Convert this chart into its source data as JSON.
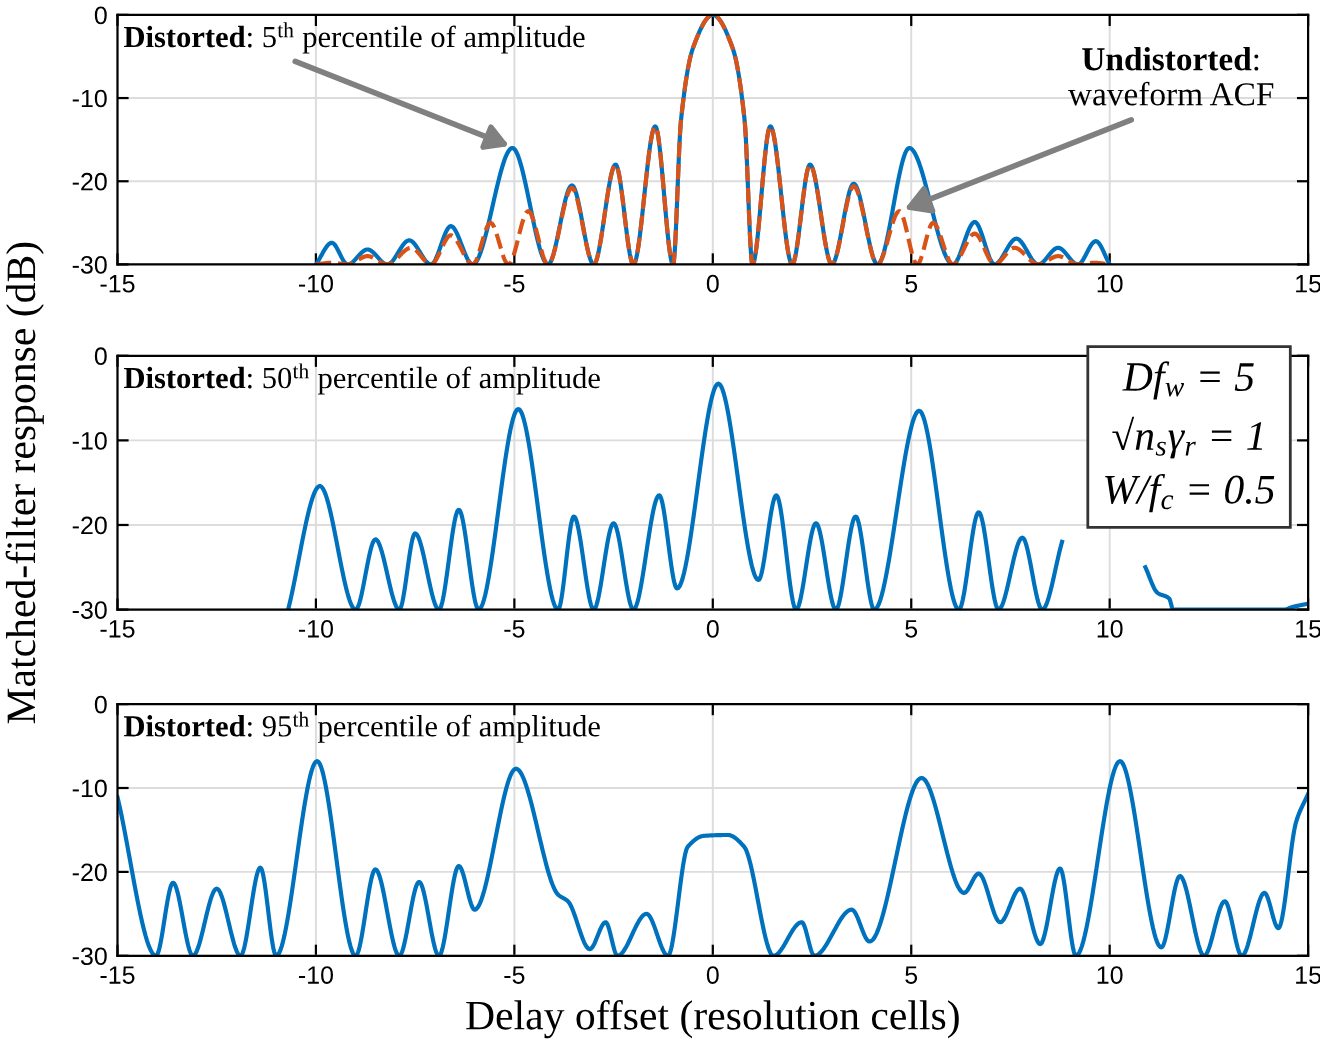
{
  "chart_data": [
    {
      "type": "line",
      "xlim": [
        -15,
        15
      ],
      "xticks": [
        -15,
        -10,
        -5,
        0,
        5,
        10,
        15
      ],
      "ylim": [
        -30,
        0
      ],
      "yticks": [
        -30,
        -20,
        -10,
        0
      ],
      "grid": true,
      "annotations": [
        {
          "text": "Distorted: 5$^{th}$ percentile of amplitude",
          "x": -5,
          "y": -16
        },
        {
          "text": "Undistorted:\nwaveform ACF",
          "x": 4.7,
          "y": -23.6
        }
      ],
      "series": [
        {
          "color": "#0072bd",
          "line_style": "solid",
          "x": [
            -10,
            -9.6,
            -9.2,
            -8.7,
            -8.2,
            -7.65,
            -7.1,
            -6.6,
            -6.05,
            -5.05,
            -4.15,
            -3.55,
            -3.0,
            -2.45,
            -2.0,
            -1.45,
            -1.0,
            -0.8,
            -0.5,
            0,
            0.5,
            0.8,
            1.0,
            1.45,
            2.0,
            2.45,
            3.0,
            3.55,
            4.15,
            4.95,
            6.05,
            6.6,
            7.1,
            7.65,
            8.2,
            8.7,
            9.2,
            9.65,
            10
          ],
          "values": [
            -30,
            -27.4,
            -30,
            -28.2,
            -30,
            -27.1,
            -30,
            -25.4,
            -30,
            -16,
            -30,
            -20.5,
            -30,
            -18,
            -30,
            -13.4,
            -30,
            -12.6,
            -4,
            0,
            -4,
            -12.6,
            -30,
            -13.4,
            -30,
            -18,
            -30,
            -20.3,
            -30,
            -16,
            -30,
            -24.9,
            -30,
            -26.9,
            -30,
            -28,
            -30,
            -27.2,
            -30
          ]
        },
        {
          "color": "#d95319",
          "line_style": "dashed",
          "x": [
            -10,
            -9.6,
            -9.2,
            -8.7,
            -8.2,
            -7.6,
            -7.1,
            -6.6,
            -6.05,
            -5.6,
            -5.15,
            -4.65,
            -4.15,
            -3.55,
            -3.0,
            -2.45,
            -2.0,
            -1.45,
            -1.0,
            -0.8,
            -0.5,
            0,
            0.5,
            0.8,
            1.0,
            1.45,
            2.0,
            2.45,
            3.0,
            3.55,
            4.15,
            4.7,
            5.15,
            5.55,
            6.05,
            6.6,
            7.1,
            7.6,
            8.2,
            8.7,
            9.2,
            9.6,
            10
          ],
          "values": [
            -30,
            -29.8,
            -30,
            -29,
            -30,
            -28,
            -30,
            -26.5,
            -30,
            -25,
            -30,
            -23.6,
            -30,
            -20.8,
            -30,
            -18,
            -30,
            -13.4,
            -30,
            -12.6,
            -4,
            0,
            -4,
            -12.6,
            -30,
            -13.4,
            -30,
            -18,
            -30,
            -20.6,
            -30,
            -23.6,
            -30,
            -25,
            -30,
            -26.3,
            -30,
            -28,
            -30,
            -29,
            -30,
            -29.8,
            -30
          ]
        }
      ]
    },
    {
      "type": "line",
      "xlim": [
        -15,
        15
      ],
      "xticks": [
        -15,
        -10,
        -5,
        0,
        5,
        10,
        15
      ],
      "ylim": [
        -30,
        0
      ],
      "yticks": [
        -30,
        -20,
        -10,
        0
      ],
      "grid": true,
      "ylabel": "Matched-filter response (dB)",
      "annotations": [
        "Distorted: 50$^{th}$ percentile of amplitude",
        "Df$_{w}$ = 5",
        "√n$_{s}$γ$_{r}$ = 1",
        "W/f$_{c}$ = 0.5"
      ],
      "series": [
        {
          "color": "#0072bd",
          "line_style": "solid",
          "x": [
            -10.7,
            -9.9,
            -9.0,
            -8.5,
            -7.9,
            -7.5,
            -6.9,
            -6.4,
            -5.9,
            -4.9,
            -3.9,
            -3.5,
            -3.0,
            -2.5,
            -2.0,
            -1.35,
            -0.9,
            0.14,
            1.15,
            1.6,
            2.1,
            2.6,
            3.1,
            3.6,
            4.07,
            5.2,
            6.2,
            6.7,
            7.2,
            7.8,
            8.3,
            8.8,
            9.05,
            10.9,
            11.2,
            11.5,
            11.6,
            14.4,
            14.6,
            15
          ],
          "values": [
            -30,
            -15.4,
            -30,
            -21.7,
            -30,
            -21,
            -30,
            -18.2,
            -30,
            -6.3,
            -30,
            -19,
            -30,
            -19.8,
            -30,
            -16.5,
            -27.5,
            -3.3,
            -26.5,
            -16.5,
            -30,
            -19.8,
            -30,
            -19,
            -30,
            -6.5,
            -30,
            -18.5,
            -30,
            -21.5,
            -30,
            -22,
            null,
            -25,
            -28,
            -28.7,
            -30,
            -30,
            -29.7,
            -29.3
          ]
        }
      ]
    },
    {
      "type": "line",
      "xlim": [
        -15,
        15
      ],
      "xticks": [
        -15,
        -10,
        -5,
        0,
        5,
        10,
        15
      ],
      "ylim": [
        -30,
        0
      ],
      "yticks": [
        -30,
        -20,
        -10,
        0
      ],
      "grid": true,
      "xlabel": "Delay offset (resolution cells)",
      "annotations": [
        "Distorted: 95$^{th}$ percentile of amplitude"
      ],
      "series": [
        {
          "color": "#0072bd",
          "line_style": "solid",
          "x": [
            -15,
            -14.03,
            -13.6,
            -13.1,
            -12.5,
            -11.9,
            -11.4,
            -11.0,
            -9.97,
            -9.0,
            -8.5,
            -7.9,
            -7.4,
            -6.9,
            -6.4,
            -6.0,
            -4.96,
            -3.9,
            -3.65,
            -3.1,
            -2.7,
            -2.4,
            -1.67,
            -1.13,
            -0.63,
            -0.22,
            0.38,
            0.79,
            1.53,
            2.24,
            2.56,
            3.5,
            3.95,
            5.26,
            6.33,
            6.7,
            7.24,
            7.74,
            8.25,
            8.75,
            9.15,
            10.26,
            11.3,
            11.77,
            12.38,
            12.9,
            13.33,
            13.9,
            14.25,
            14.7,
            15
          ],
          "values": [
            -11.1,
            -30,
            -21.3,
            -30,
            -22,
            -30,
            -19.5,
            -30,
            -6.8,
            -30,
            -19.7,
            -30,
            -21.2,
            -30,
            -19.3,
            -24.5,
            -7.7,
            -22.7,
            -23.5,
            -29.2,
            -26,
            -30,
            -25,
            -30,
            -17,
            -15.7,
            -15.6,
            -17,
            -30,
            -26,
            -30,
            -24.5,
            -28.3,
            -8.8,
            -22.5,
            -20.2,
            -26,
            -22,
            -28.6,
            -19.6,
            -30,
            -6.8,
            -29,
            -20.5,
            -30,
            -23.5,
            -30,
            -22.5,
            -26.7,
            -14,
            -10.7
          ]
        }
      ]
    }
  ]
}
